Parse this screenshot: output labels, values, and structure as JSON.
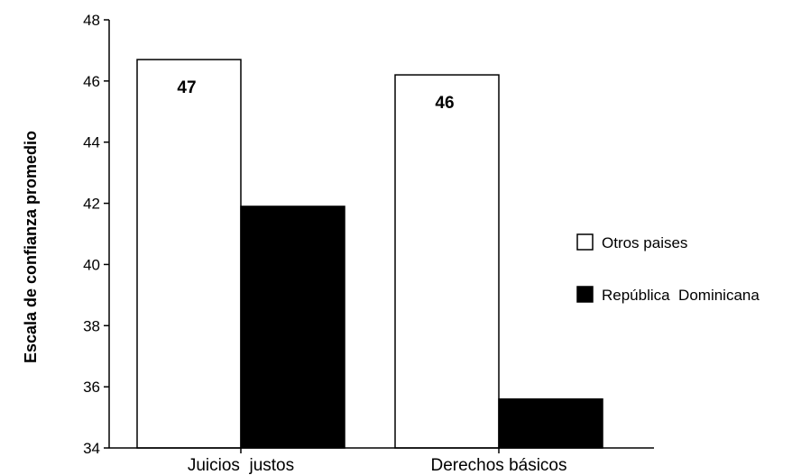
{
  "chart_data": {
    "type": "bar",
    "title": "",
    "xlabel": "",
    "ylabel": "Escala de confianza promedio",
    "ylim": [
      34,
      48
    ],
    "yticks": [
      "34",
      "36",
      "38",
      "40",
      "42",
      "44",
      "46",
      "48"
    ],
    "grid": false,
    "legend_position": "right",
    "categories": [
      "Juicios  justos",
      "Derechos básicos"
    ],
    "series": [
      {
        "name": "Otros paises",
        "color": "#ffffff",
        "values": [
          46.7,
          46.2
        ],
        "data_labels": [
          "47",
          "46"
        ]
      },
      {
        "name": "República  Dominicana",
        "color": "#000000",
        "values": [
          41.9,
          35.6
        ],
        "data_labels": [
          "",
          ""
        ]
      }
    ]
  }
}
